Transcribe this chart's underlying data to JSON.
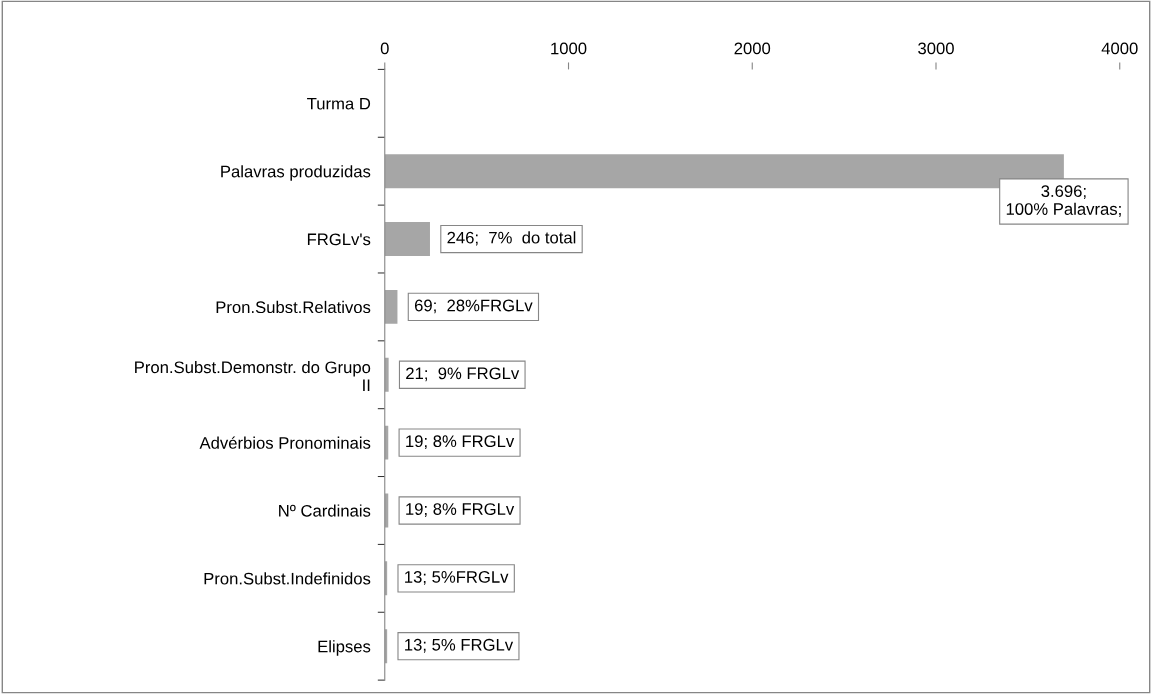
{
  "chart_data": {
    "type": "bar",
    "orientation": "horizontal",
    "categories": [
      "Turma D",
      "Palavras produzidas",
      "FRGLv's",
      "Pron.Subst.Relativos",
      "Pron.Subst.Demonstr. do Grupo\nII",
      "Advérbios Pronominais",
      "Nº Cardinais",
      "Pron.Subst.Indefinidos",
      "Elipses"
    ],
    "values": [
      null,
      3696,
      246,
      69,
      21,
      19,
      19,
      13,
      13
    ],
    "value_labels": [
      null,
      "3.696;\n100% Palavras;",
      "246;  7%  do total",
      "69;  28%FRGLv",
      "21;  9% FRGLv",
      "19; 8% FRGLv",
      "19; 8% FRGLv",
      "13; 5%FRGLv",
      "13; 5% FRGLv"
    ],
    "color": "#a6a6a6",
    "xlim": [
      0,
      4000
    ],
    "xticks": [
      0,
      1000,
      2000,
      3000,
      4000
    ],
    "grid": false
  }
}
